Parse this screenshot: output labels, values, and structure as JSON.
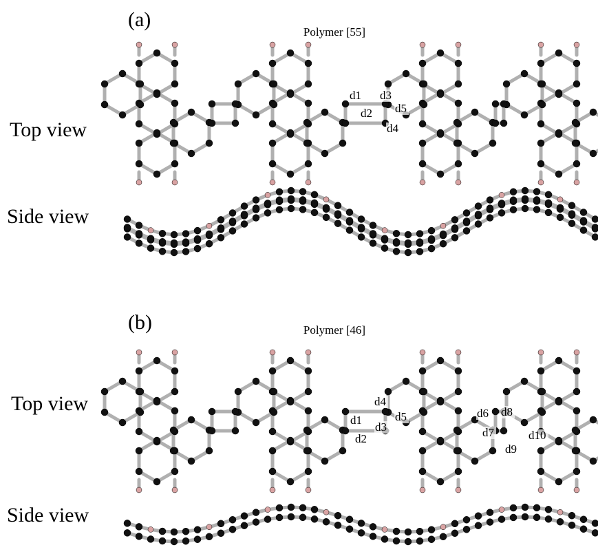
{
  "panels": [
    {
      "label": "(a)",
      "title": "Polymer [55]",
      "top_view_label": "Top view",
      "side_view_label": "Side view",
      "bond_labels": [
        "d1",
        "d2",
        "d3",
        "d4",
        "d5"
      ]
    },
    {
      "label": "(b)",
      "title": "Polymer [46]",
      "top_view_label": "Top view",
      "side_view_label": "Side view",
      "bond_labels": [
        "d1",
        "d2",
        "d3",
        "d4",
        "d5",
        "d6",
        "d7",
        "d8",
        "d9",
        "d10"
      ]
    }
  ]
}
